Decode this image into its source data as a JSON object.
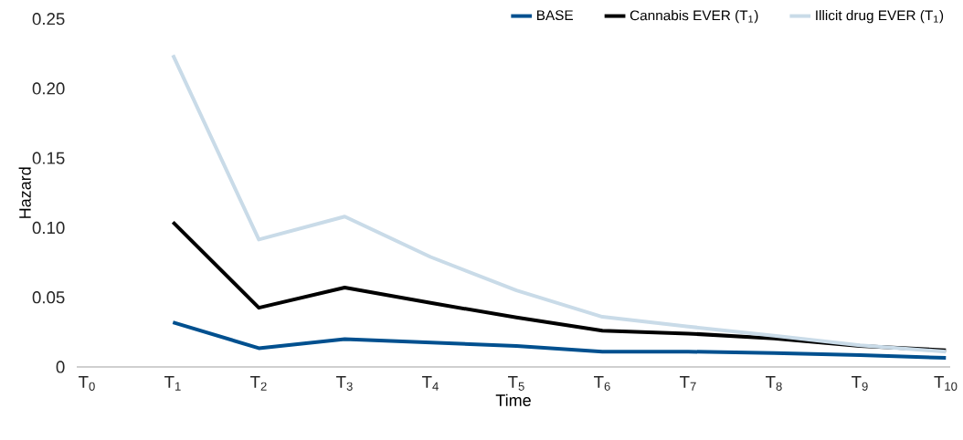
{
  "chart_data": {
    "type": "line",
    "xlabel": "Time",
    "ylabel": "Hazard",
    "categories": [
      "T$_{0}$",
      "T$_{1}$",
      "T$_{2}$",
      "T$_{3}$",
      "T$_{4}$",
      "T$_{5}$",
      "T$_{6}$",
      "T$_{7}$",
      "T$_{8}$",
      "T$_{9}$",
      "T$_{10}$"
    ],
    "series": [
      {
        "name": "BASE",
        "color": "#00508f",
        "values": [
          null,
          0.032,
          0.0135,
          0.02,
          0.0175,
          0.015,
          0.011,
          0.011,
          0.01,
          0.0085,
          0.0065
        ]
      },
      {
        "name": "Cannabis EVER (T$_{1}$)",
        "color": "#000000",
        "values": [
          null,
          0.104,
          0.0425,
          0.057,
          0.046,
          0.0355,
          0.026,
          0.024,
          0.0205,
          0.015,
          0.012
        ]
      },
      {
        "name": "Illicit drug EVER (T$_{1}$)",
        "color": "#c9dbe8",
        "values": [
          null,
          0.224,
          0.0915,
          0.108,
          0.079,
          0.055,
          0.036,
          0.029,
          0.0225,
          0.0155,
          0.011
        ]
      }
    ],
    "ylim": [
      0,
      0.25
    ],
    "yticks": [
      {
        "value": 0,
        "label": "0"
      },
      {
        "value": 0.05,
        "label": "0.05"
      },
      {
        "value": 0.1,
        "label": "0.10"
      },
      {
        "value": 0.15,
        "label": "0.15"
      },
      {
        "value": 0.2,
        "label": "0.20"
      },
      {
        "value": 0.25,
        "label": "0.25"
      }
    ],
    "legend": "top right",
    "marker": "none",
    "line_style": "solid"
  }
}
